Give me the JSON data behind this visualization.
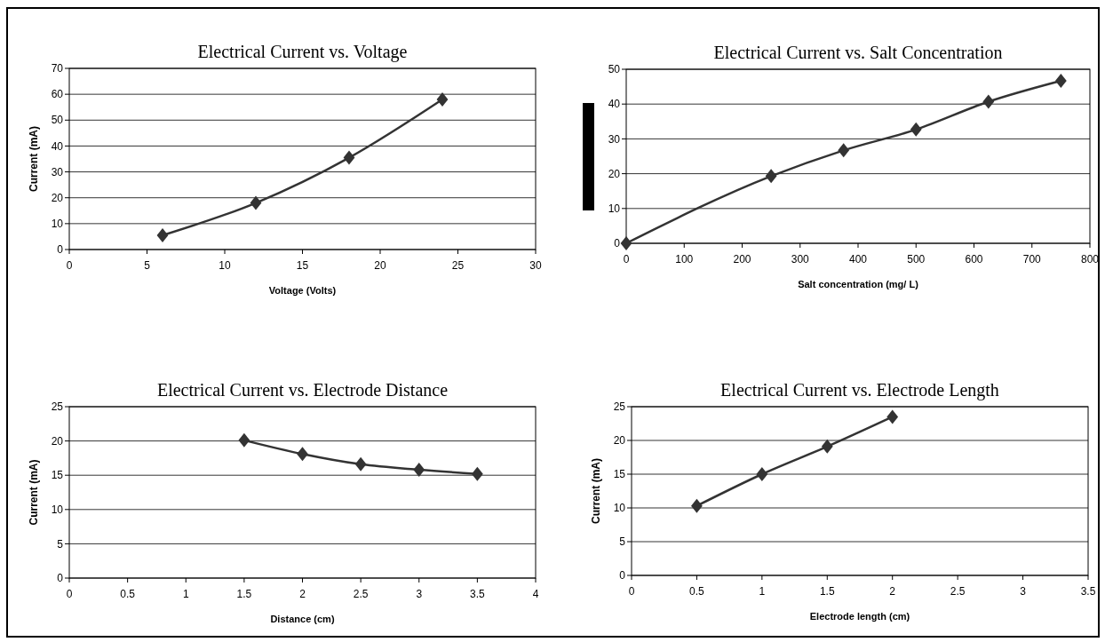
{
  "chart_data": [
    {
      "type": "line",
      "title": "Electrical Current vs. Voltage",
      "xlabel": "Voltage (Volts)",
      "ylabel": "Current (mA)",
      "x": [
        6,
        12,
        18,
        24
      ],
      "series": [
        {
          "color": "#333333",
          "values": [
            5.5,
            18,
            35.5,
            58
          ]
        }
      ],
      "xlim": [
        0,
        30
      ],
      "xticks": [
        0,
        5,
        10,
        15,
        20,
        25,
        30
      ],
      "ylim": [
        0,
        70
      ],
      "yticks": [
        0,
        10,
        20,
        30,
        40,
        50,
        60,
        70
      ],
      "grid": "y",
      "marker": "diamond"
    },
    {
      "type": "line",
      "title": "Electrical Current vs. Salt Concentration",
      "xlabel": "Salt concentration (mg/ L)",
      "x": [
        0,
        250,
        375,
        500,
        625,
        750
      ],
      "series": [
        {
          "color": "#333333",
          "values": [
            0,
            19.3,
            26.7,
            32.7,
            40.7,
            46.7
          ]
        }
      ],
      "xlim": [
        0,
        800
      ],
      "xticks": [
        0,
        100,
        200,
        300,
        400,
        500,
        600,
        700,
        800
      ],
      "ylim": [
        0,
        50
      ],
      "yticks": [
        0,
        10,
        20,
        30,
        40,
        50
      ],
      "grid": "y",
      "marker": "diamond"
    },
    {
      "type": "line",
      "title": "Electrical Current vs. Electrode Distance",
      "xlabel": "Distance (cm)",
      "ylabel": "Current (mA)",
      "x": [
        1.5,
        2,
        2.5,
        3,
        3.5
      ],
      "series": [
        {
          "color": "#333333",
          "values": [
            20.1,
            18.1,
            16.6,
            15.8,
            15.2
          ]
        }
      ],
      "xlim": [
        0,
        4
      ],
      "xticks": [
        0,
        0.5,
        1,
        1.5,
        2,
        2.5,
        3,
        3.5,
        4
      ],
      "ylim": [
        0,
        25
      ],
      "yticks": [
        0,
        5,
        10,
        15,
        20,
        25
      ],
      "grid": "y",
      "marker": "diamond"
    },
    {
      "type": "line",
      "title": "Electrical Current vs. Electrode Length",
      "xlabel": "Electrode length (cm)",
      "ylabel": "Current (mA)",
      "x": [
        0.5,
        1,
        1.5,
        2
      ],
      "series": [
        {
          "color": "#333333",
          "values": [
            10.3,
            15,
            19.1,
            23.5
          ]
        }
      ],
      "xlim": [
        0,
        3.5
      ],
      "xticks": [
        0,
        0.5,
        1,
        1.5,
        2,
        2.5,
        3,
        3.5
      ],
      "ylim": [
        0,
        25
      ],
      "yticks": [
        0,
        5,
        10,
        15,
        20,
        25
      ],
      "grid": "y",
      "marker": "diamond"
    }
  ]
}
